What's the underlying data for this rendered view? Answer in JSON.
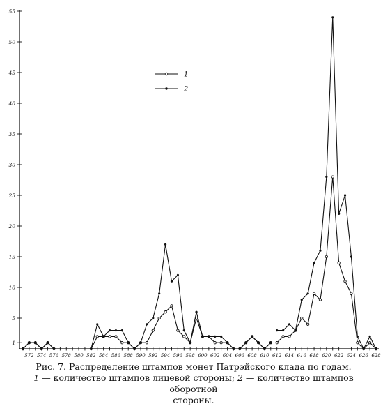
{
  "chart_data": {
    "type": "line",
    "y_ticks": [
      1,
      5,
      10,
      15,
      20,
      25,
      30,
      35,
      40,
      45,
      50,
      55
    ],
    "ylim": [
      0,
      55
    ],
    "x_tick_labels": [
      "572",
      "574",
      "576",
      "578",
      "580",
      "582",
      "584",
      "586",
      "588",
      "590",
      "592",
      "594",
      "596",
      "598",
      "600",
      "602",
      "604",
      "606",
      "608",
      "610",
      "612",
      "614",
      "616",
      "618",
      "620",
      "622",
      "624",
      "626",
      "628"
    ],
    "x_range": [
      571,
      628
    ],
    "grid": false,
    "legend_position": "top-center",
    "series": [
      {
        "name": "1",
        "marker": "open-circle",
        "segments": [
          [
            [
              571,
              0
            ],
            [
              572,
              1
            ],
            [
              573,
              1
            ],
            [
              574,
              0
            ],
            [
              575,
              1
            ],
            [
              576,
              0
            ]
          ],
          [
            [
              582,
              0
            ],
            [
              583,
              2
            ],
            [
              584,
              2
            ],
            [
              585,
              2
            ],
            [
              586,
              2
            ],
            [
              587,
              1
            ],
            [
              588,
              1
            ],
            [
              589,
              0
            ],
            [
              590,
              1
            ],
            [
              591,
              1
            ],
            [
              592,
              3
            ],
            [
              593,
              5
            ],
            [
              594,
              6
            ],
            [
              595,
              7
            ],
            [
              596,
              3
            ],
            [
              597,
              2
            ],
            [
              598,
              1
            ],
            [
              599,
              5
            ],
            [
              600,
              2
            ],
            [
              601,
              2
            ],
            [
              602,
              1
            ],
            [
              603,
              1
            ],
            [
              604,
              1
            ],
            [
              605,
              0
            ]
          ],
          [
            [
              606,
              0
            ],
            [
              607,
              1
            ],
            [
              608,
              2
            ],
            [
              609,
              1
            ],
            [
              610,
              0
            ],
            [
              611,
              1
            ]
          ],
          [
            [
              612,
              1
            ],
            [
              613,
              2
            ],
            [
              614,
              2
            ],
            [
              615,
              3
            ],
            [
              616,
              5
            ],
            [
              617,
              4
            ],
            [
              618,
              9
            ],
            [
              619,
              8
            ],
            [
              620,
              15
            ],
            [
              621,
              28
            ],
            [
              622,
              14
            ],
            [
              623,
              11
            ],
            [
              624,
              9
            ],
            [
              625,
              1
            ],
            [
              626,
              0
            ],
            [
              627,
              1
            ],
            [
              628,
              0
            ]
          ]
        ]
      },
      {
        "name": "2",
        "marker": "filled-dot",
        "segments": [
          [
            [
              571,
              0
            ],
            [
              572,
              1
            ],
            [
              573,
              1
            ],
            [
              574,
              0
            ],
            [
              575,
              1
            ],
            [
              576,
              0
            ]
          ],
          [
            [
              582,
              0
            ],
            [
              583,
              4
            ],
            [
              584,
              2
            ],
            [
              585,
              3
            ],
            [
              586,
              3
            ],
            [
              587,
              3
            ],
            [
              588,
              1
            ],
            [
              589,
              0
            ],
            [
              590,
              1
            ],
            [
              591,
              4
            ],
            [
              592,
              5
            ],
            [
              593,
              9
            ],
            [
              594,
              17
            ],
            [
              595,
              11
            ],
            [
              596,
              12
            ],
            [
              597,
              3
            ],
            [
              598,
              1
            ],
            [
              599,
              6
            ],
            [
              600,
              2
            ],
            [
              601,
              2
            ],
            [
              602,
              2
            ],
            [
              603,
              2
            ],
            [
              604,
              1
            ],
            [
              605,
              0
            ]
          ],
          [
            [
              606,
              0
            ],
            [
              607,
              1
            ],
            [
              608,
              2
            ],
            [
              609,
              1
            ],
            [
              610,
              0
            ],
            [
              611,
              1
            ]
          ],
          [
            [
              612,
              3
            ],
            [
              613,
              3
            ],
            [
              614,
              4
            ],
            [
              615,
              3
            ],
            [
              616,
              8
            ],
            [
              617,
              9
            ],
            [
              618,
              14
            ],
            [
              619,
              16
            ],
            [
              620,
              28
            ],
            [
              621,
              54
            ],
            [
              622,
              22
            ],
            [
              623,
              25
            ],
            [
              624,
              15
            ],
            [
              625,
              2
            ],
            [
              626,
              0
            ],
            [
              627,
              2
            ],
            [
              628,
              0
            ]
          ]
        ]
      }
    ]
  },
  "caption": {
    "line1": "Рис. 7. Распределение штампов монет Патрэйского клада по годам.",
    "line2_num1": "1",
    "line2_text1": " — количество штампов лицевой стороны; ",
    "line2_num2": "2",
    "line2_text2": " — количество штампов оборотной",
    "line3": "стороны."
  }
}
